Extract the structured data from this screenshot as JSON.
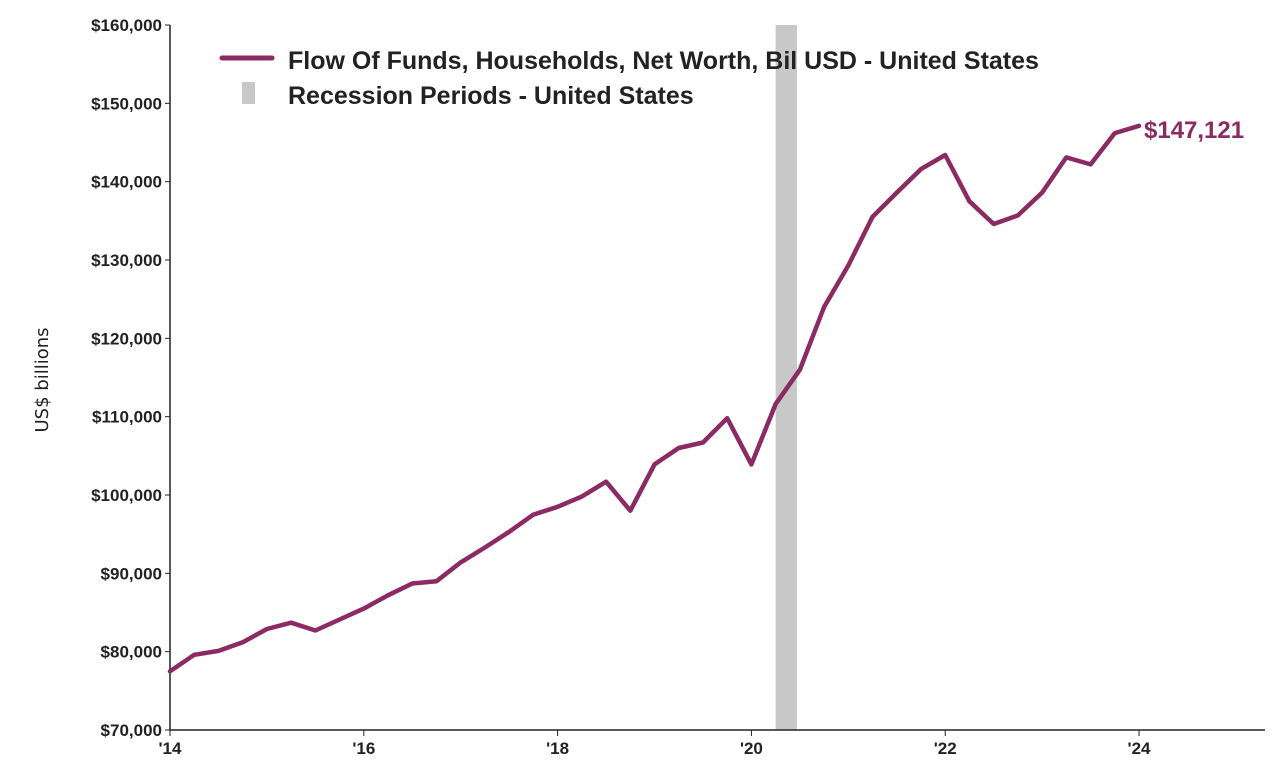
{
  "colors": {
    "series": "#8b2a63",
    "recession": "#c8c8c8",
    "axis": "#222222",
    "text": "#222222"
  },
  "chart_data": {
    "type": "line",
    "ylabel": "US$ billions",
    "ylim": [
      70000,
      160000
    ],
    "yticks": [
      70000,
      80000,
      90000,
      100000,
      110000,
      120000,
      130000,
      140000,
      150000,
      160000
    ],
    "ytick_labels": [
      "$70,000",
      "$80,000",
      "$90,000",
      "$100,000",
      "$110,000",
      "$120,000",
      "$130,000",
      "$140,000",
      "$150,000",
      "$160,000"
    ],
    "xlim": [
      2014.0,
      2025.3
    ],
    "xticks": [
      2014,
      2016,
      2018,
      2020,
      2022,
      2024
    ],
    "xtick_labels": [
      "'14",
      "'16",
      "'18",
      "'20",
      "'22",
      "'24"
    ],
    "grid": false,
    "legend_placement": "top-left",
    "legend": [
      {
        "label": "Flow Of Funds, Households, Net Worth, Bil USD - United States",
        "kind": "line"
      },
      {
        "label": "Recession Periods - United States",
        "kind": "shade"
      }
    ],
    "recessions": [
      {
        "start": 2020.25,
        "end": 2020.47
      }
    ],
    "end_label": "$147,121",
    "series": [
      {
        "name": "Flow Of Funds, Households, Net Worth, Bil USD - United States",
        "x": [
          2014.0,
          2014.25,
          2014.5,
          2014.75,
          2015.0,
          2015.25,
          2015.5,
          2015.75,
          2016.0,
          2016.25,
          2016.5,
          2016.75,
          2017.0,
          2017.25,
          2017.5,
          2017.75,
          2018.0,
          2018.25,
          2018.5,
          2018.75,
          2019.0,
          2019.25,
          2019.5,
          2019.75,
          2020.0,
          2020.25,
          2020.5,
          2020.75,
          2021.0,
          2021.25,
          2021.5,
          2021.75,
          2022.0,
          2022.25,
          2022.5,
          2022.75,
          2023.0,
          2023.25,
          2023.5,
          2023.75,
          2024.0
        ],
        "y": [
          77500,
          79600,
          80100,
          81200,
          82900,
          83700,
          82700,
          84100,
          85500,
          87200,
          88700,
          89000,
          91400,
          93300,
          95300,
          97500,
          98500,
          99800,
          101700,
          98000,
          103900,
          106000,
          106700,
          109800,
          103900,
          111600,
          116000,
          124000,
          129300,
          135500,
          138600,
          141600,
          143400,
          137500,
          134600,
          135700,
          138600,
          143100,
          142200,
          146200,
          147121
        ]
      }
    ]
  }
}
